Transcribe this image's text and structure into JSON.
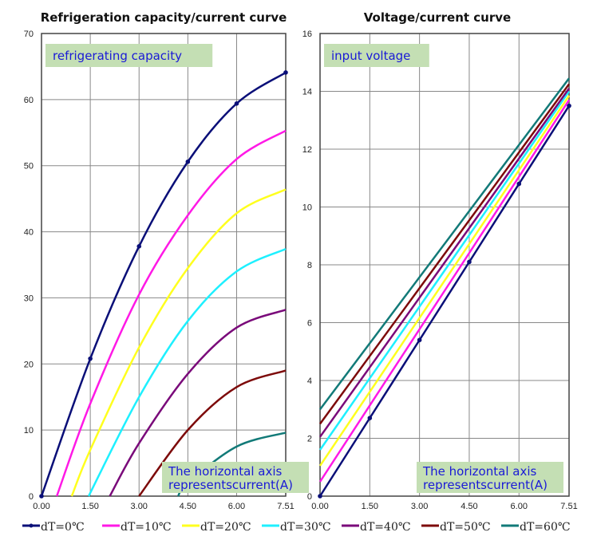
{
  "legend_colors": [
    "#0a0f78",
    "#ff19e6",
    "#ffff1e",
    "#1ef0ff",
    "#7a0a7a",
    "#7d0a0a",
    "#127a78"
  ],
  "chart_data": [
    {
      "type": "line",
      "title": "Refrigeration capacity/current curve",
      "label": "refrigerating capacity",
      "note": [
        "The horizontal axis",
        "representscurrent(A)"
      ],
      "xlim": [
        0,
        7.51
      ],
      "ylim": [
        0,
        70
      ],
      "xticks": [
        "0.00",
        "1.50",
        "3.00",
        "4.50",
        "6.00",
        "7.51"
      ],
      "xtick_values": [
        0,
        1.5,
        3,
        4.5,
        6,
        7.51
      ],
      "yticks": [
        "0",
        "10",
        "20",
        "30",
        "40",
        "50",
        "60",
        "70"
      ],
      "ytick_values": [
        0,
        10,
        20,
        30,
        40,
        50,
        60,
        70
      ],
      "series": [
        {
          "name": "dT=0℃",
          "points": [
            [
              0,
              0
            ],
            [
              1.5,
              20.8
            ],
            [
              3,
              37.8
            ],
            [
              4.5,
              50.6
            ],
            [
              6,
              59.4
            ],
            [
              7.51,
              64.1
            ]
          ],
          "markers": true
        },
        {
          "name": "dT=10℃",
          "points": [
            [
              0.47,
              0
            ],
            [
              1.5,
              14
            ],
            [
              3,
              30.5
            ],
            [
              4.5,
              42.5
            ],
            [
              6,
              51
            ],
            [
              7.51,
              55.3
            ]
          ]
        },
        {
          "name": "dT=20℃",
          "points": [
            [
              0.93,
              0
            ],
            [
              1.5,
              7
            ],
            [
              3,
              22.5
            ],
            [
              4.5,
              34.5
            ],
            [
              6,
              42.8
            ],
            [
              7.51,
              46.4
            ]
          ]
        },
        {
          "name": "dT=30℃",
          "points": [
            [
              1.45,
              0
            ],
            [
              3,
              15
            ],
            [
              4.5,
              26.5
            ],
            [
              6,
              34
            ],
            [
              7.51,
              37.4
            ]
          ]
        },
        {
          "name": "dT=40℃",
          "points": [
            [
              2.1,
              0
            ],
            [
              3,
              8
            ],
            [
              4.5,
              18.5
            ],
            [
              6,
              25.5
            ],
            [
              7.51,
              28.2
            ]
          ]
        },
        {
          "name": "dT=50℃",
          "points": [
            [
              3,
              0
            ],
            [
              4.5,
              10
            ],
            [
              6,
              16.5
            ],
            [
              7.51,
              19
            ]
          ]
        },
        {
          "name": "dT=60℃",
          "points": [
            [
              4.2,
              0
            ],
            [
              4.5,
              2
            ],
            [
              6,
              7.5
            ],
            [
              7.51,
              9.6
            ]
          ]
        }
      ]
    },
    {
      "type": "line",
      "title": "Voltage/current curve",
      "label": "input voltage",
      "note": [
        "The horizontal axis",
        "representscurrent(A)"
      ],
      "xlim": [
        0,
        7.51
      ],
      "ylim": [
        0,
        16
      ],
      "xticks": [
        "0.00",
        "1.50",
        "3.00",
        "4.50",
        "6.00",
        "7.51"
      ],
      "xtick_values": [
        0,
        1.5,
        3,
        4.5,
        6,
        7.51
      ],
      "yticks": [
        "0",
        "2",
        "4",
        "6",
        "8",
        "10",
        "12",
        "14",
        "16"
      ],
      "ytick_values": [
        0,
        2,
        4,
        6,
        8,
        10,
        12,
        14,
        16
      ],
      "series": [
        {
          "name": "dT=0℃",
          "points": [
            [
              0,
              0
            ],
            [
              1.5,
              2.7
            ],
            [
              3,
              5.4
            ],
            [
              4.5,
              8.1
            ],
            [
              6,
              10.8
            ],
            [
              7.51,
              13.5
            ]
          ],
          "markers": true
        },
        {
          "name": "dT=10℃",
          "points": [
            [
              0,
              0.5
            ],
            [
              7.51,
              13.7
            ]
          ]
        },
        {
          "name": "dT=20℃",
          "points": [
            [
              0,
              1.05
            ],
            [
              7.51,
              13.85
            ]
          ]
        },
        {
          "name": "dT=30℃",
          "points": [
            [
              0,
              1.6
            ],
            [
              7.51,
              14.0
            ]
          ]
        },
        {
          "name": "dT=40℃",
          "points": [
            [
              0,
              2.05
            ],
            [
              7.51,
              14.1
            ]
          ]
        },
        {
          "name": "dT=50℃",
          "points": [
            [
              0,
              2.5
            ],
            [
              7.51,
              14.25
            ]
          ]
        },
        {
          "name": "dT=60℃",
          "points": [
            [
              0,
              3.0
            ],
            [
              7.51,
              14.45
            ]
          ]
        }
      ]
    }
  ],
  "legend": [
    "dT=0℃",
    "dT=10℃",
    "dT=20℃",
    "dT=30℃",
    "dT=40℃",
    "dT=50℃",
    "dT=60℃"
  ]
}
